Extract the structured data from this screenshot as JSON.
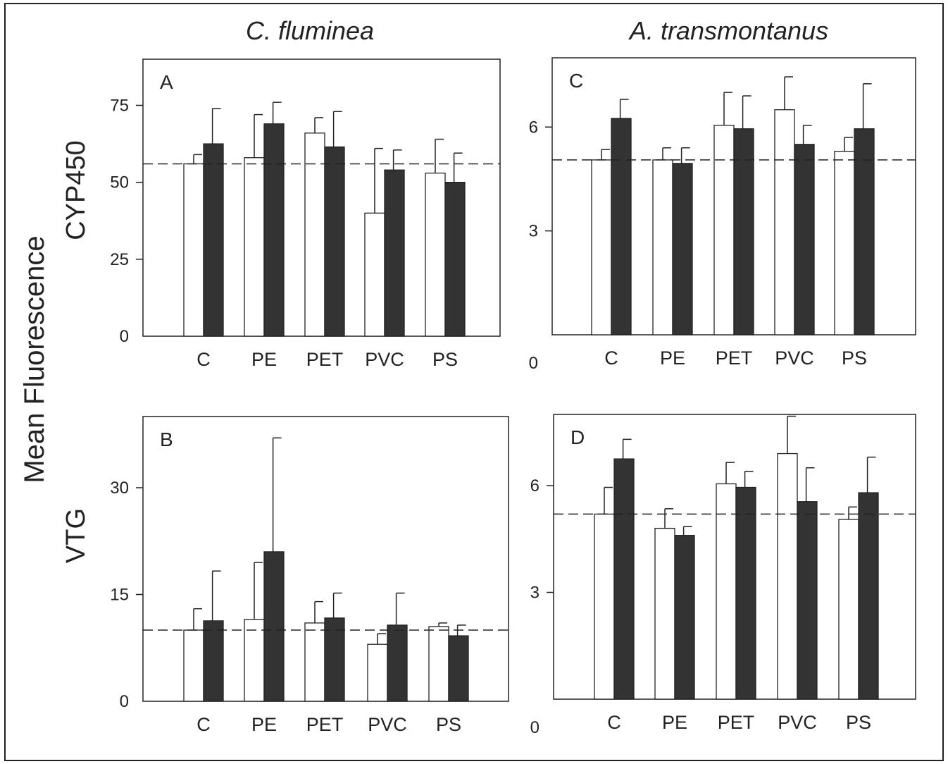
{
  "figure": {
    "column_titles": [
      "C. fluminea",
      "A. transmontanus"
    ],
    "row_titles": [
      "CYP450",
      "VTG"
    ],
    "y_axis_title": "Mean Fluorescence"
  },
  "colors": {
    "open_bar": "#ffffff",
    "filled_bar": "#333333",
    "axis": "#222222"
  },
  "chart_data": [
    {
      "type": "bar",
      "panel": "A",
      "species": "C. fluminea",
      "marker": "CYP450",
      "categories": [
        "C",
        "PE",
        "PET",
        "PVC",
        "PS"
      ],
      "ylim": [
        0,
        90
      ],
      "yticks": [
        0,
        25,
        50,
        75
      ],
      "reference_line": 56,
      "series": [
        {
          "fill": "open",
          "values": [
            56,
            58,
            66,
            40,
            53
          ],
          "errors": [
            3,
            14,
            5,
            21,
            11
          ]
        },
        {
          "fill": "filled",
          "values": [
            62.5,
            69,
            61.5,
            54,
            50
          ],
          "errors": [
            11.5,
            7,
            11.5,
            6.5,
            9.5
          ]
        }
      ]
    },
    {
      "type": "bar",
      "panel": "B",
      "species": "C. fluminea",
      "marker": "VTG",
      "categories": [
        "C",
        "PE",
        "PET",
        "PVC",
        "PS"
      ],
      "ylim": [
        0,
        40
      ],
      "yticks": [
        0,
        15,
        30
      ],
      "reference_line": 10,
      "series": [
        {
          "fill": "open",
          "values": [
            10,
            11.5,
            11,
            8,
            10.5
          ],
          "errors": [
            3,
            8,
            3,
            1.5,
            0.5
          ]
        },
        {
          "fill": "filled",
          "values": [
            11.3,
            21,
            11.7,
            10.7,
            9.2
          ],
          "errors": [
            7,
            16,
            3.5,
            4.5,
            1.5
          ]
        }
      ]
    },
    {
      "type": "bar",
      "panel": "C",
      "species": "A. transmontanus",
      "marker": "CYP450",
      "categories": [
        "C",
        "PE",
        "PET",
        "PVC",
        "PS"
      ],
      "ylim": [
        0,
        8
      ],
      "yticks": [
        0,
        3,
        6
      ],
      "reference_line": 5.05,
      "series": [
        {
          "fill": "open",
          "values": [
            5.05,
            5.05,
            6.05,
            6.5,
            5.3
          ],
          "errors": [
            0.3,
            0.35,
            0.95,
            0.95,
            0.4
          ]
        },
        {
          "fill": "filled",
          "values": [
            6.25,
            4.95,
            5.95,
            5.5,
            5.95
          ],
          "errors": [
            0.55,
            0.45,
            0.95,
            0.55,
            1.3
          ]
        }
      ]
    },
    {
      "type": "bar",
      "panel": "D",
      "species": "A. transmontanus",
      "marker": "VTG",
      "categories": [
        "C",
        "PE",
        "PET",
        "PVC",
        "PS"
      ],
      "ylim": [
        0,
        8
      ],
      "yticks": [
        0,
        3,
        6
      ],
      "reference_line": 5.2,
      "series": [
        {
          "fill": "open",
          "values": [
            5.2,
            4.8,
            6.05,
            6.9,
            5.05
          ],
          "errors": [
            0.75,
            0.55,
            0.6,
            1.05,
            0.35
          ]
        },
        {
          "fill": "filled",
          "values": [
            6.75,
            4.6,
            5.95,
            5.55,
            5.8
          ],
          "errors": [
            0.55,
            0.25,
            0.45,
            0.95,
            1.0
          ]
        }
      ]
    }
  ]
}
